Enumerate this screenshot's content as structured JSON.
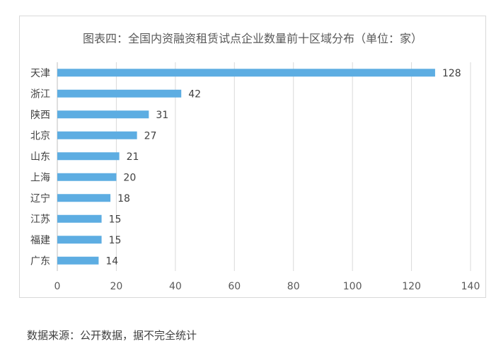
{
  "source_note": "数据来源：公开数据，据不完全统计",
  "chart_data": {
    "type": "bar",
    "orientation": "horizontal",
    "title": "图表四：全国内资融资租赁试点企业数量前十区域分布（单位：家）",
    "categories": [
      "天津",
      "浙江",
      "陕西",
      "北京",
      "山东",
      "上海",
      "辽宁",
      "江苏",
      "福建",
      "广东"
    ],
    "values": [
      128,
      42,
      31,
      27,
      21,
      20,
      18,
      15,
      15,
      14
    ],
    "xlim": [
      0,
      140
    ],
    "xticks": [
      0,
      20,
      40,
      60,
      80,
      100,
      120,
      140
    ],
    "xtick_labels": [
      "0",
      "20",
      "40",
      "60",
      "80",
      "100",
      "120",
      "140"
    ],
    "grid": true,
    "legend": "none",
    "bar_color": "#5dade2"
  }
}
